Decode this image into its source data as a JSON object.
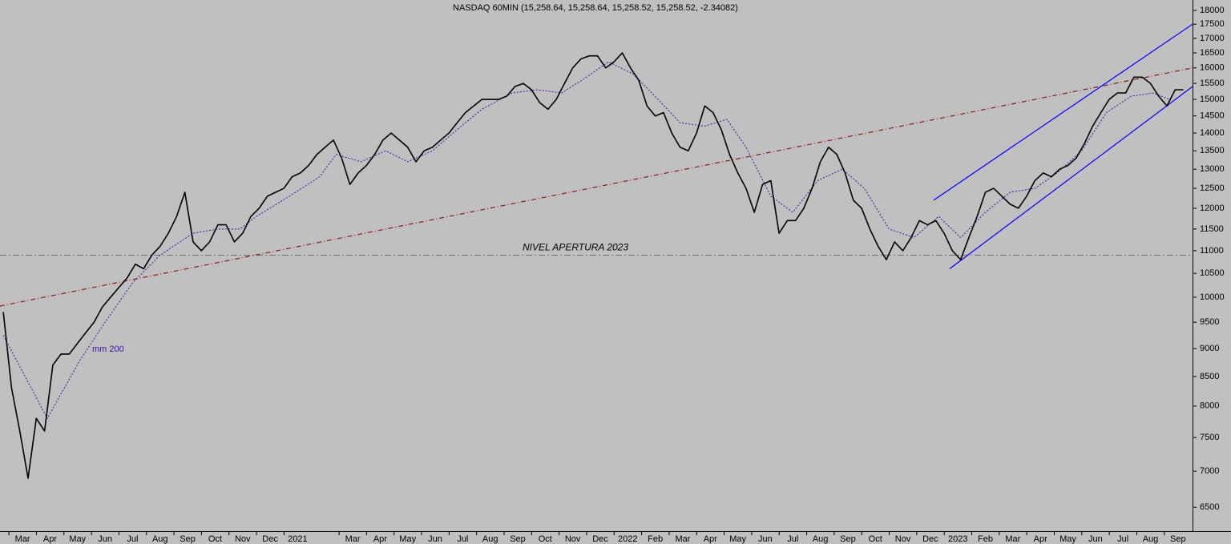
{
  "chart_data": {
    "type": "line",
    "title": "NASDAQ 60MIN (15,258.64, 15,258.64, 15,258.52, 15,258.52, -2.34082)",
    "log_scale": true,
    "xlim": [
      0.18,
      43.53
    ],
    "ylim": [
      6190,
      18390
    ],
    "yticks": [
      6500,
      7000,
      7500,
      8000,
      8500,
      9000,
      9500,
      10000,
      10500,
      11000,
      11500,
      12000,
      12500,
      13000,
      13500,
      14000,
      14500,
      15000,
      15500,
      16000,
      16500,
      17000,
      17500,
      18000
    ],
    "xticks": [
      {
        "value": 0,
        "label": "b"
      },
      {
        "value": 1,
        "label": "Mar"
      },
      {
        "value": 2,
        "label": "Apr"
      },
      {
        "value": 3,
        "label": "May"
      },
      {
        "value": 4,
        "label": "Jun"
      },
      {
        "value": 5,
        "label": "Jul"
      },
      {
        "value": 6,
        "label": "Aug"
      },
      {
        "value": 7,
        "label": "Sep"
      },
      {
        "value": 8,
        "label": "Oct"
      },
      {
        "value": 9,
        "label": "Nov"
      },
      {
        "value": 10,
        "label": "Dec"
      },
      {
        "value": 11,
        "label": "2021"
      },
      {
        "value": 13,
        "label": "Mar"
      },
      {
        "value": 14,
        "label": "Apr"
      },
      {
        "value": 15,
        "label": "May"
      },
      {
        "value": 16,
        "label": "Jun"
      },
      {
        "value": 17,
        "label": "Jul"
      },
      {
        "value": 18,
        "label": "Aug"
      },
      {
        "value": 19,
        "label": "Sep"
      },
      {
        "value": 20,
        "label": "Oct"
      },
      {
        "value": 21,
        "label": "Nov"
      },
      {
        "value": 22,
        "label": "Dec"
      },
      {
        "value": 23,
        "label": "2022"
      },
      {
        "value": 24,
        "label": "Feb"
      },
      {
        "value": 25,
        "label": "Mar"
      },
      {
        "value": 26,
        "label": "Apr"
      },
      {
        "value": 27,
        "label": "May"
      },
      {
        "value": 28,
        "label": "Jun"
      },
      {
        "value": 29,
        "label": "Jul"
      },
      {
        "value": 30,
        "label": "Aug"
      },
      {
        "value": 31,
        "label": "Sep"
      },
      {
        "value": 32,
        "label": "Oct"
      },
      {
        "value": 33,
        "label": "Nov"
      },
      {
        "value": 34,
        "label": "Dec"
      },
      {
        "value": 35,
        "label": "2023"
      },
      {
        "value": 36,
        "label": "Feb"
      },
      {
        "value": 37,
        "label": "Mar"
      },
      {
        "value": 38,
        "label": "Apr"
      },
      {
        "value": 39,
        "label": "May"
      },
      {
        "value": 40,
        "label": "Jun"
      },
      {
        "value": 41,
        "label": "Jul"
      },
      {
        "value": 42,
        "label": "Aug"
      },
      {
        "value": 43,
        "label": "Sep"
      }
    ],
    "series": [
      {
        "color": "#000000",
        "style": "solid",
        "x": [
          0.3,
          0.6,
          0.9,
          1.2,
          1.5,
          1.8,
          2.1,
          2.4,
          2.7,
          3,
          3.3,
          3.6,
          3.9,
          4.2,
          4.5,
          4.8,
          5.1,
          5.4,
          5.7,
          6,
          6.3,
          6.6,
          6.9,
          7.2,
          7.5,
          7.8,
          8.1,
          8.4,
          8.7,
          9,
          9.3,
          9.6,
          9.9,
          10.2,
          10.5,
          10.8,
          11.1,
          11.4,
          11.7,
          12,
          12.3,
          12.6,
          12.9,
          13.2,
          13.5,
          13.8,
          14.1,
          14.4,
          14.7,
          15,
          15.3,
          15.6,
          15.9,
          16.2,
          16.5,
          16.8,
          17.1,
          17.4,
          17.7,
          18,
          18.3,
          18.6,
          18.9,
          19.2,
          19.5,
          19.8,
          20.1,
          20.4,
          20.7,
          21,
          21.3,
          21.6,
          21.9,
          22.2,
          22.5,
          22.8,
          23.1,
          23.4,
          23.7,
          24,
          24.3,
          24.6,
          24.9,
          25.2,
          25.5,
          25.8,
          26.1,
          26.4,
          26.7,
          27,
          27.3,
          27.6,
          27.9,
          28.2,
          28.5,
          28.8,
          29.1,
          29.4,
          29.7,
          30,
          30.3,
          30.6,
          30.9,
          31.2,
          31.5,
          31.8,
          32.1,
          32.4,
          32.7,
          33,
          33.3,
          33.6,
          33.9,
          34.2,
          34.5,
          34.8,
          35.1,
          35.4,
          35.7,
          36,
          36.3,
          36.6,
          36.9,
          37.2,
          37.5,
          37.8,
          38.1,
          38.4,
          38.7,
          39,
          39.3,
          39.6,
          39.9,
          40.2,
          40.5,
          40.8,
          41.1,
          41.4,
          41.7,
          42,
          42.3,
          42.6,
          42.9,
          43.2
        ],
        "values": [
          9700,
          8300,
          7600,
          6900,
          7800,
          7600,
          8700,
          8900,
          8900,
          9100,
          9300,
          9500,
          9800,
          10000,
          10200,
          10400,
          10700,
          10600,
          10900,
          11100,
          11400,
          11800,
          12400,
          11200,
          11000,
          11200,
          11600,
          11600,
          11200,
          11400,
          11800,
          12000,
          12300,
          12400,
          12500,
          12800,
          12900,
          13100,
          13400,
          13600,
          13800,
          13300,
          12600,
          12900,
          13100,
          13400,
          13800,
          14000,
          13800,
          13600,
          13200,
          13500,
          13600,
          13800,
          14000,
          14300,
          14600,
          14800,
          15000,
          15000,
          15000,
          15100,
          15400,
          15500,
          15300,
          14900,
          14700,
          15000,
          15500,
          16000,
          16300,
          16400,
          16400,
          16000,
          16200,
          16500,
          16000,
          15600,
          14800,
          14500,
          14600,
          14000,
          13600,
          13500,
          14000,
          14800,
          14600,
          14100,
          13400,
          12900,
          12500,
          11900,
          12600,
          12700,
          11400,
          11700,
          11700,
          12000,
          12500,
          13200,
          13600,
          13400,
          12900,
          12200,
          12000,
          11500,
          11100,
          10800,
          11200,
          11000,
          11300,
          11700,
          11600,
          11700,
          11400,
          11000,
          10800,
          11300,
          11800,
          12400,
          12500,
          12300,
          12100,
          12000,
          12300,
          12700,
          12900,
          12800,
          13000,
          13100,
          13300,
          13700,
          14200,
          14600,
          15000,
          15200,
          15200,
          15700,
          15700,
          15500,
          15100,
          14800,
          15300,
          15300
        ]
      },
      {
        "name": "mm 200",
        "color": "#3c14a0",
        "style": "dotted",
        "x": [
          0.3,
          1.9,
          3.1,
          4,
          5,
          6,
          7.2,
          8.1,
          8.9,
          9.5,
          10.7,
          11.8,
          12.4,
          13.3,
          14.2,
          15,
          15.9,
          16.8,
          17.7,
          18.8,
          19.7,
          20.6,
          21.5,
          22.3,
          23.2,
          24.1,
          24.9,
          25.8,
          26.6,
          27.3,
          28.2,
          29,
          29.9,
          30.8,
          31.6,
          32.5,
          33.4,
          34.3,
          35.1,
          36,
          36.9,
          37.8,
          38.6,
          39.5,
          40.4,
          41.3,
          42.1,
          42.7
        ],
        "values": [
          9250,
          7800,
          8800,
          9500,
          10300,
          10900,
          11400,
          11500,
          11500,
          11800,
          12300,
          12800,
          13400,
          13200,
          13500,
          13200,
          13500,
          14100,
          14700,
          15200,
          15300,
          15200,
          15700,
          16200,
          15800,
          15000,
          14300,
          14200,
          14400,
          13600,
          12300,
          11900,
          12700,
          13000,
          12500,
          11500,
          11300,
          11800,
          11300,
          11900,
          12400,
          12500,
          12900,
          13500,
          14600,
          15100,
          15200,
          15000
        ]
      }
    ],
    "trend_lines": [
      {
        "color": "#8b1a1a",
        "style": "dashdot",
        "x": [
          0.18,
          43.53
        ],
        "values": [
          9820,
          16000
        ]
      },
      {
        "color": "#0000ff",
        "style": "solid",
        "x": [
          34.12,
          43.53
        ],
        "values": [
          12200,
          17500
        ]
      },
      {
        "color": "#0000ff",
        "style": "solid",
        "x": [
          34.7,
          43.53
        ],
        "values": [
          10600,
          15400
        ]
      }
    ],
    "level_line": {
      "value": 10900,
      "label": "NIVEL APERTURA 2023",
      "color": "#6e6e6e"
    }
  }
}
